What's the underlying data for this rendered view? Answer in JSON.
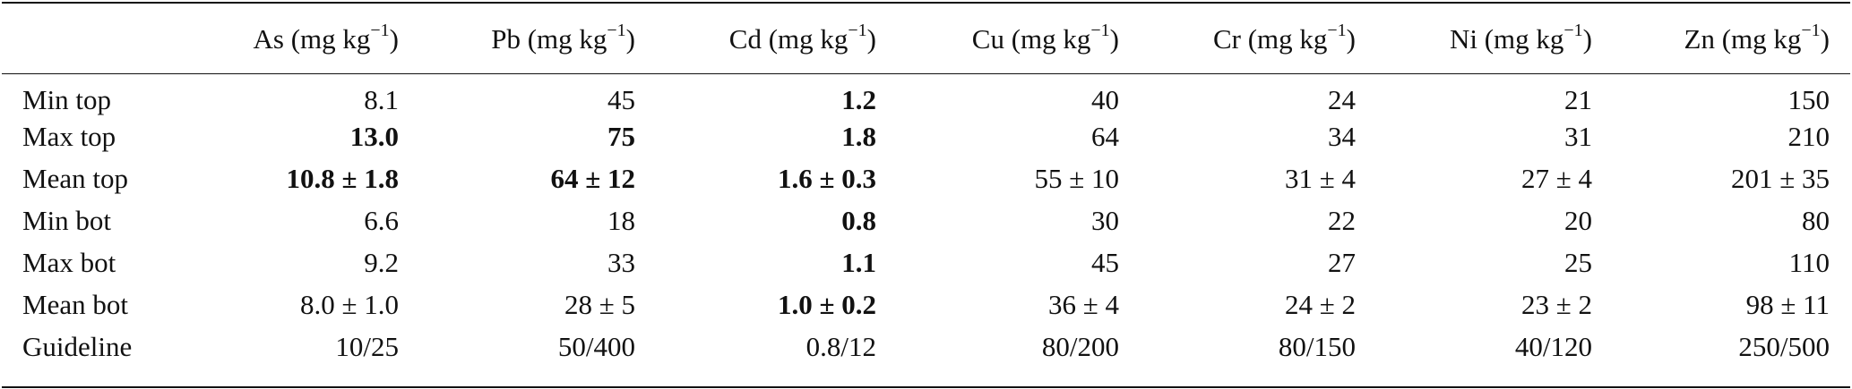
{
  "table": {
    "row_header_label": "",
    "unit": "(mg kg",
    "unit_exp": "−1",
    "unit_close": ")",
    "columns": [
      "As",
      "Pb",
      "Cd",
      "Cu",
      "Cr",
      "Ni",
      "Zn"
    ],
    "rows": [
      {
        "label": "Min top",
        "cells": [
          "8.1",
          "45",
          "1.2",
          "40",
          "24",
          "21",
          "150"
        ],
        "bold": [
          false,
          false,
          true,
          false,
          false,
          false,
          false
        ]
      },
      {
        "label": "Max top",
        "cells": [
          "13.0",
          "75",
          "1.8",
          "64",
          "34",
          "31",
          "210"
        ],
        "bold": [
          true,
          true,
          true,
          false,
          false,
          false,
          false
        ]
      },
      {
        "label": "Mean top",
        "cells": [
          "10.8 ± 1.8",
          "64 ± 12",
          "1.6 ± 0.3",
          "55 ± 10",
          "31 ± 4",
          "27 ± 4",
          "201 ± 35"
        ],
        "bold": [
          true,
          true,
          true,
          false,
          false,
          false,
          false
        ]
      },
      {
        "label": "Min bot",
        "cells": [
          "6.6",
          "18",
          "0.8",
          "30",
          "22",
          "20",
          "80"
        ],
        "bold": [
          false,
          false,
          true,
          false,
          false,
          false,
          false
        ]
      },
      {
        "label": "Max bot",
        "cells": [
          "9.2",
          "33",
          "1.1",
          "45",
          "27",
          "25",
          "110"
        ],
        "bold": [
          false,
          false,
          true,
          false,
          false,
          false,
          false
        ]
      },
      {
        "label": "Mean bot",
        "cells": [
          "8.0 ± 1.0",
          "28 ± 5",
          "1.0 ± 0.2",
          "36 ± 4",
          "24 ± 2",
          "23 ± 2",
          "98 ± 11"
        ],
        "bold": [
          false,
          false,
          true,
          false,
          false,
          false,
          false
        ]
      },
      {
        "label": "Guideline",
        "cells": [
          "10/25",
          "50/400",
          "0.8/12",
          "80/200",
          "80/150",
          "40/120",
          "250/500"
        ],
        "bold": [
          false,
          false,
          false,
          false,
          false,
          false,
          false
        ]
      }
    ]
  }
}
